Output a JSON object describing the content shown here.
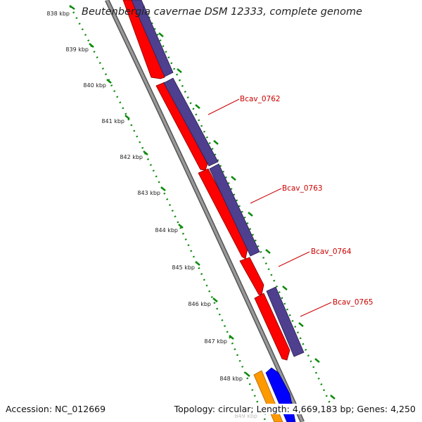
{
  "title": "Beutenbergia cavernae DSM 12333, complete genome",
  "footer": {
    "accession": "Accession: NC_012669",
    "summary": "Topology: circular; Length: 4,669,183 bp; Genes: 4,250"
  },
  "scale_labels": [
    "838 kbp",
    "839 kbp",
    "840 kbp",
    "841 kbp",
    "842 kbp",
    "843 kbp",
    "844 kbp",
    "845 kbp",
    "846 kbp",
    "847 kbp",
    "848 kbp",
    "849 kbp"
  ],
  "gene_labels": [
    "Bcav_0762",
    "Bcav_0763",
    "Bcav_0764",
    "Bcav_0765"
  ],
  "colors": {
    "cds": "#ff0000",
    "gene": "#4e3f8f",
    "orange": "#ff9900",
    "blue": "#0000ff",
    "backbone": "#888888",
    "scale_ticks": "#0b8a0b",
    "gene_label": "#cc0000"
  }
}
